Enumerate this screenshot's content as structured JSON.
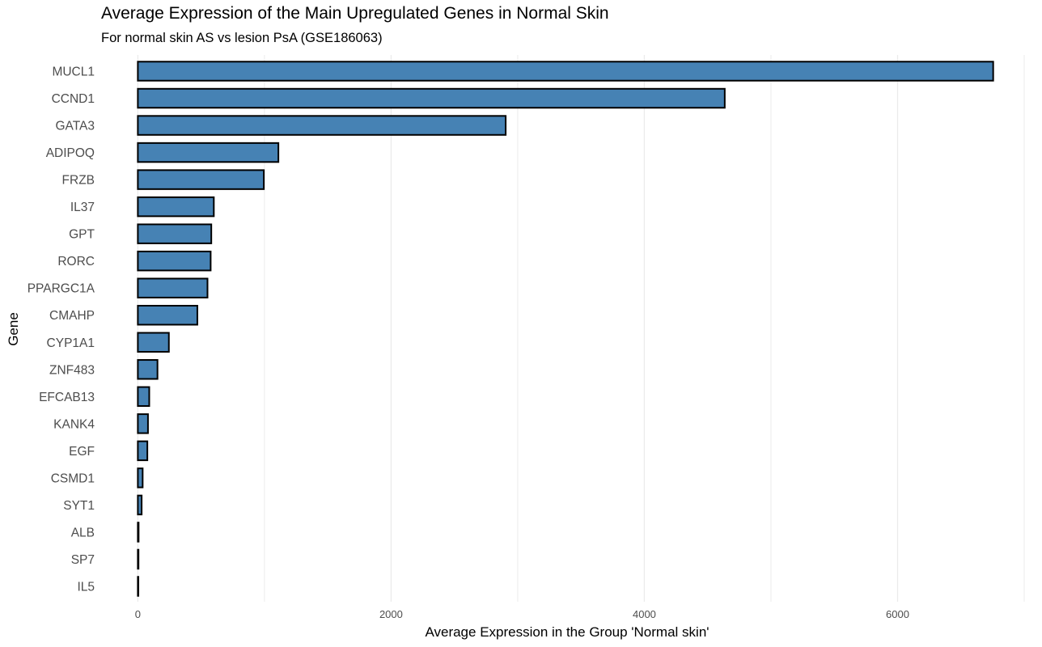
{
  "chart_data": {
    "type": "bar",
    "orientation": "horizontal",
    "title": "Average Expression of the Main Upregulated Genes in Normal Skin",
    "subtitle": "For normal skin AS vs lesion PsA (GSE186063)",
    "xlabel": "Average Expression in the Group 'Normal skin'",
    "ylabel": "Gene",
    "categories": [
      "MUCL1",
      "CCND1",
      "GATA3",
      "ADIPOQ",
      "FRZB",
      "IL37",
      "GPT",
      "RORC",
      "PPARGC1A",
      "CMAHP",
      "CYP1A1",
      "ZNF483",
      "EFCAB13",
      "KANK4",
      "EGF",
      "CSMD1",
      "SYT1",
      "ALB",
      "SP7",
      "IL5"
    ],
    "values": [
      6755,
      4635,
      2905,
      1110,
      995,
      600,
      580,
      575,
      550,
      470,
      245,
      155,
      90,
      80,
      75,
      38,
      30,
      6,
      5,
      4
    ],
    "xlim": [
      -290,
      7000
    ],
    "xticks": [
      0,
      2000,
      4000,
      6000
    ],
    "xtick_labels": [
      "0",
      "2000",
      "4000",
      "6000"
    ],
    "bar_fill": "#4682B4",
    "bar_outline": "#000000",
    "grid": true,
    "gridline_color": "#ebebeb",
    "legend": "none"
  }
}
